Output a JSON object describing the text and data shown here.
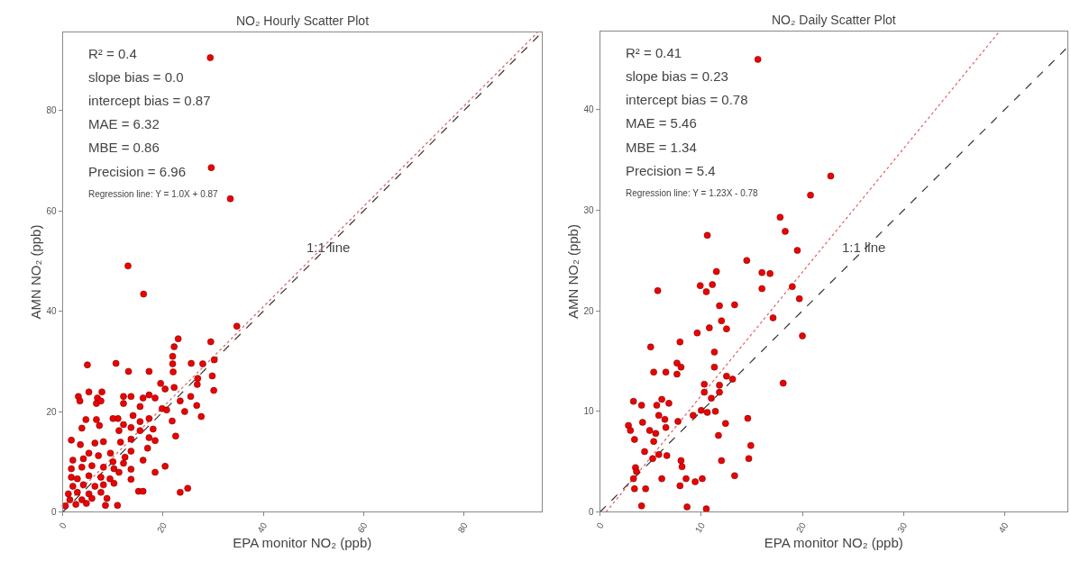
{
  "chart_data": [
    {
      "type": "scatter",
      "title": "NO₂ Hourly Scatter Plot",
      "xlabel": "EPA monitor NO₂ (ppb)",
      "ylabel": "AMN NO₂ (ppb)",
      "xlim": [
        0,
        95.5
      ],
      "ylim": [
        0,
        95.6
      ],
      "xticks": [
        0,
        20,
        40,
        60,
        80
      ],
      "yticks": [
        0,
        20,
        40,
        60,
        80
      ],
      "annotations": [
        "R² = 0.4",
        "slope bias = 0.0",
        "intercept bias = 0.87",
        "MAE = 6.32",
        "MBE = 0.86",
        "Precision = 6.96",
        "Regression line: Y = 1.0X + 0.87",
        {
          "text": "1:1 line",
          "x": 52.9,
          "y": 52.8
        }
      ],
      "series": [
        {
          "type": "line",
          "marker": "none",
          "color": "#333333",
          "line_style": "dashed",
          "x": [
            0,
            95.5
          ],
          "values": [
            0,
            95.5
          ]
        },
        {
          "type": "line",
          "marker": "none",
          "color": "#e06060",
          "line_style": "dotted",
          "x": [
            0,
            94.6
          ],
          "values": [
            0.9,
            95.5
          ]
        },
        {
          "marker": "circle",
          "color": "#ee0000",
          "x": [
            13,
            16.1,
            34.7,
            23.0,
            22.2,
            29.5,
            21.9,
            4.9,
            10.6,
            13.1,
            17.2,
            21.9,
            25.6,
            27.9,
            30.2,
            29.8,
            30.1,
            22.0,
            19.5,
            20.4,
            22.2,
            26.9,
            26.8,
            25.5,
            23.4,
            19.8,
            20.7,
            24.3,
            26.7,
            27.6,
            21.8,
            22.5,
            17.2,
            18.4,
            16.0,
            13.6,
            12.1,
            12.1,
            15.4,
            17.2,
            15.4,
            14.0,
            11.0,
            10.0,
            12.1,
            13.6,
            15.4,
            18.0,
            17.2,
            18.4,
            16.9,
            16.0,
            13.6,
            11.2,
            11.5,
            13.6,
            12.4,
            12.1,
            13.6,
            11.2,
            13.6,
            15.1,
            16.0,
            18.4,
            20.4,
            23.4,
            24.9,
            3.1,
            3.4,
            5.2,
            6.9,
            7.8,
            6.7,
            7.6,
            4.6,
            6.7,
            7.3,
            3.8,
            1.7,
            3.5,
            6.4,
            8.1,
            5.2,
            2.0,
            4.1,
            7.1,
            9.5,
            10.0,
            1.7,
            3.8,
            5.8,
            8.1,
            10.2,
            1.7,
            2.9,
            5.2,
            7.6,
            9.4,
            2.0,
            4.1,
            6.4,
            8.1,
            10.2,
            1.1,
            2.9,
            5.2,
            7.6,
            1.4,
            3.8,
            5.8,
            8.8,
            2.6,
            4.7,
            8.5,
            10.9,
            0.5,
            29.4,
            29.6,
            33.4
          ],
          "values": [
            49.0,
            43.4,
            37.0,
            34.5,
            32.9,
            33.9,
            31.0,
            29.3,
            29.6,
            28.0,
            28.0,
            29.5,
            29.6,
            29.5,
            30.3,
            27.1,
            24.2,
            27.9,
            25.6,
            24.5,
            24.8,
            26.6,
            25.4,
            23.0,
            22.1,
            20.6,
            20.3,
            20.0,
            21.2,
            19.0,
            18.1,
            15.1,
            23.3,
            22.7,
            22.7,
            23.0,
            23.0,
            21.6,
            21.0,
            18.6,
            18.0,
            19.2,
            18.6,
            18.6,
            17.4,
            16.8,
            16.2,
            16.5,
            14.8,
            14.2,
            12.7,
            10.3,
            14.5,
            16.2,
            13.9,
            12.1,
            10.9,
            9.7,
            8.5,
            7.9,
            6.5,
            4.1,
            4.1,
            7.9,
            9.1,
            3.9,
            4.7,
            23.0,
            22.1,
            23.9,
            22.7,
            23.9,
            21.6,
            22.1,
            18.4,
            18.4,
            17.2,
            16.7,
            14.3,
            13.4,
            13.7,
            14.0,
            11.7,
            10.3,
            10.6,
            11.2,
            11.7,
            10.0,
            8.6,
            8.9,
            9.2,
            8.9,
            8.6,
            6.9,
            6.6,
            7.2,
            6.9,
            6.6,
            5.1,
            5.4,
            5.1,
            5.4,
            5.7,
            3.6,
            3.9,
            3.6,
            3.9,
            2.4,
            2.4,
            2.7,
            2.7,
            1.5,
            1.7,
            1.3,
            1.3,
            1.2,
            90.5,
            68.6,
            62.4
          ]
        }
      ]
    },
    {
      "type": "scatter",
      "title": "NO₂ Daily Scatter Plot",
      "xlabel": "EPA monitor NO₂ (ppb)",
      "ylabel": "AMN NO₂ (ppb)",
      "xlim": [
        0,
        46.2
      ],
      "ylim": [
        0,
        47.8
      ],
      "xticks": [
        0,
        10,
        20,
        30,
        40
      ],
      "yticks": [
        0,
        10,
        20,
        30,
        40
      ],
      "annotations": [
        "R² = 0.41",
        "slope bias = 0.23",
        "intercept bias = 0.78",
        "MAE = 5.46",
        "MBE = 1.34",
        "Precision = 5.4",
        "Regression line: Y = 1.23X - 0.78",
        {
          "text": "1:1 line",
          "x": 26.1,
          "y": 26.3
        }
      ],
      "series": [
        {
          "type": "line",
          "marker": "none",
          "color": "#333333",
          "line_style": "dashed",
          "x": [
            0,
            46.2
          ],
          "values": [
            0,
            46.2
          ]
        },
        {
          "type": "line",
          "marker": "none",
          "color": "#e06060",
          "line_style": "dotted",
          "x": [
            0.6,
            39.5
          ],
          "values": [
            0,
            47.8
          ]
        },
        {
          "marker": "circle",
          "color": "#ee0000",
          "x": [
            17.8,
            18.3,
            19.5,
            10.6,
            14.5,
            16.0,
            16.8,
            16.0,
            19.0,
            19.7,
            17.1,
            20.0,
            18.1,
            11.5,
            9.9,
            11.1,
            10.5,
            11.8,
            13.3,
            12.0,
            12.5,
            10.8,
            9.6,
            5.7,
            5.0,
            7.9,
            7.6,
            8.0,
            5.3,
            6.5,
            7.6,
            11.3,
            11.3,
            10.3,
            11.8,
            12.5,
            13.1,
            10.3,
            11.8,
            11.0,
            10.0,
            10.6,
            11.4,
            3.3,
            4.1,
            5.6,
            6.1,
            6.8,
            5.8,
            6.4,
            7.7,
            9.2,
            4.2,
            2.8,
            3.0,
            3.4,
            4.9,
            5.5,
            6.5,
            5.3,
            12.4,
            14.6,
            11.7,
            14.9,
            4.4,
            5.2,
            5.8,
            6.6,
            8.0,
            8.1,
            12.0,
            14.7,
            3.5,
            3.6,
            3.3,
            6.1,
            8.5,
            9.4,
            10.1,
            13.3,
            7.9,
            3.4,
            4.5,
            4.1,
            8.6,
            10.5,
            15.6,
            22.8,
            20.8
          ],
          "values": [
            29.3,
            27.9,
            26.0,
            27.5,
            25.0,
            23.8,
            23.7,
            22.2,
            22.4,
            21.2,
            19.3,
            17.5,
            12.8,
            23.9,
            22.5,
            22.6,
            21.9,
            20.5,
            20.6,
            19.0,
            18.2,
            18.3,
            17.8,
            22.0,
            16.4,
            16.9,
            14.8,
            14.4,
            13.9,
            13.9,
            13.7,
            15.9,
            14.4,
            12.7,
            12.6,
            13.5,
            13.2,
            11.9,
            11.9,
            11.3,
            10.1,
            9.9,
            10.0,
            11.0,
            10.6,
            10.6,
            11.2,
            10.8,
            9.6,
            9.2,
            9.0,
            9.6,
            8.9,
            8.6,
            8.1,
            7.2,
            8.1,
            7.8,
            8.4,
            7.0,
            8.8,
            9.3,
            7.6,
            6.6,
            6.0,
            5.3,
            5.7,
            5.6,
            5.1,
            4.5,
            5.1,
            5.3,
            4.4,
            4.0,
            3.3,
            3.3,
            3.3,
            3.0,
            3.3,
            3.6,
            2.6,
            2.3,
            2.3,
            0.6,
            0.5,
            0.3,
            45.0,
            33.4,
            31.5
          ]
        }
      ]
    }
  ]
}
